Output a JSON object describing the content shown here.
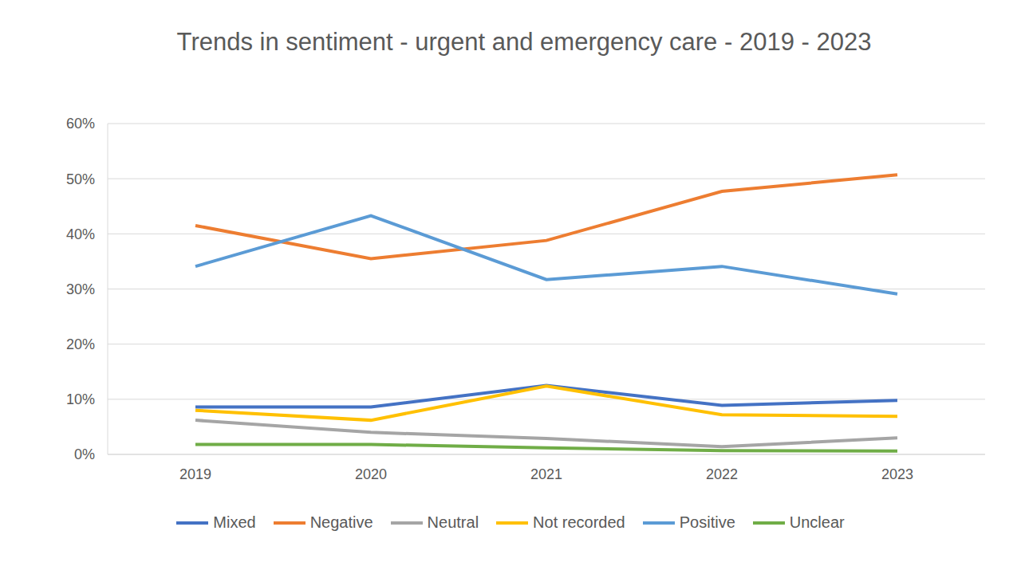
{
  "chart_data": {
    "type": "line",
    "title": "Trends in sentiment - urgent and emergency care - 2019 - 2023",
    "categories": [
      "2019",
      "2020",
      "2021",
      "2022",
      "2023"
    ],
    "series": [
      {
        "name": "Mixed",
        "color": "#4472c4",
        "values": [
          8.6,
          8.6,
          12.5,
          8.9,
          9.8
        ]
      },
      {
        "name": "Negative",
        "color": "#ed7d31",
        "values": [
          41.5,
          35.5,
          38.8,
          47.7,
          50.7
        ]
      },
      {
        "name": "Neutral",
        "color": "#a5a5a5",
        "values": [
          6.2,
          4.0,
          2.9,
          1.4,
          3.0
        ]
      },
      {
        "name": "Not recorded",
        "color": "#ffc000",
        "values": [
          8.0,
          6.2,
          12.4,
          7.2,
          6.9
        ]
      },
      {
        "name": "Positive",
        "color": "#5b9bd5",
        "values": [
          34.1,
          43.3,
          31.7,
          34.1,
          29.1
        ]
      },
      {
        "name": "Unclear",
        "color": "#70ad47",
        "values": [
          1.8,
          1.8,
          1.2,
          0.7,
          0.6
        ]
      }
    ],
    "ylim": [
      0,
      60
    ],
    "yticks": [
      {
        "value": 0,
        "label": "0%"
      },
      {
        "value": 10,
        "label": "10%"
      },
      {
        "value": 20,
        "label": "20%"
      },
      {
        "value": 30,
        "label": "30%"
      },
      {
        "value": 40,
        "label": "40%"
      },
      {
        "value": 50,
        "label": "50%"
      },
      {
        "value": 60,
        "label": "60%"
      }
    ],
    "grid": true,
    "legend": "bottom"
  }
}
